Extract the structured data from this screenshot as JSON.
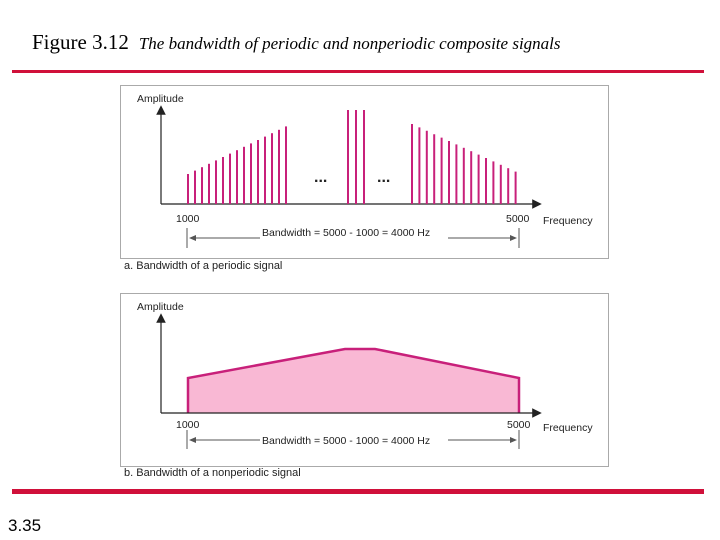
{
  "title": {
    "figure_number": "Figure 3.12",
    "caption": "The bandwidth of periodic and nonperiodic composite signals"
  },
  "page_number": "3.35",
  "colors": {
    "accent_rule": "#d0103a",
    "spectral_line": "#c8207a",
    "spectrum_fill": "#f9b8d4"
  },
  "panel_a": {
    "y_axis_label": "Amplitude",
    "x_axis_label": "Frequency",
    "x_start_label": "1000",
    "x_end_label": "5000",
    "bandwidth_label": "Bandwidth = 5000 - 1000 = 4000 Hz",
    "ellipsis_left": "...",
    "ellipsis_right": "...",
    "caption": "a. Bandwidth of a periodic signal"
  },
  "panel_b": {
    "y_axis_label": "Amplitude",
    "x_axis_label": "Frequency",
    "x_start_label": "1000",
    "x_end_label": "5000",
    "bandwidth_label": "Bandwidth = 5000 - 1000 = 4000 Hz",
    "caption": "b. Bandwidth of a nonperiodic signal"
  }
}
